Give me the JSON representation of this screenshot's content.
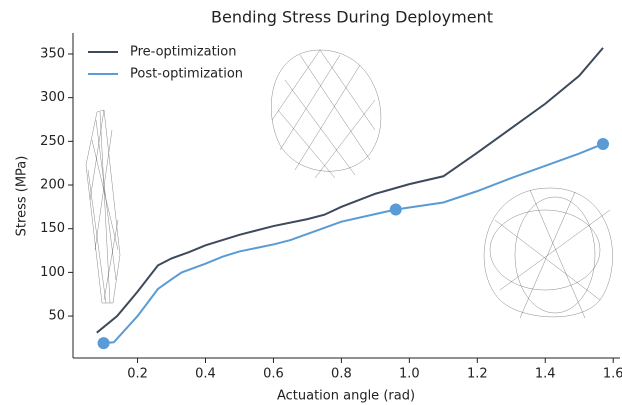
{
  "chart_data": {
    "type": "line",
    "title": "Bending Stress During Deployment",
    "x_label": "Actuation angle (rad)",
    "y_label": "Stress (MPa)",
    "xlim": [
      0.01,
      1.62
    ],
    "ylim": [
      2,
      374
    ],
    "xticks": [
      0.2,
      0.4,
      0.6,
      0.8,
      {
        "value": 1,
        "label": "1.0"
      },
      1.2,
      1.4,
      1.6
    ],
    "yticks": [
      50,
      100,
      150,
      200,
      250,
      300,
      350
    ],
    "grid": false,
    "legend": "upper left",
    "series": [
      {
        "name": "Pre-optimization",
        "color": "#3d4a5c",
        "x": [
          0.08,
          0.14,
          0.2,
          0.26,
          0.3,
          0.35,
          0.4,
          0.5,
          0.6,
          0.7,
          0.75,
          0.8,
          0.9,
          1.0,
          1.1,
          1.2,
          1.3,
          1.4,
          1.5,
          1.57
        ],
        "values": [
          31,
          50,
          78,
          108,
          116,
          123,
          131,
          143,
          153,
          161,
          166,
          175,
          190,
          201,
          210,
          237,
          265,
          293,
          325,
          357
        ]
      },
      {
        "name": "Post-optimization",
        "color": "#5b9bd5",
        "x": [
          0.1,
          0.13,
          0.2,
          0.26,
          0.3,
          0.33,
          0.4,
          0.45,
          0.5,
          0.6,
          0.65,
          0.8,
          0.96,
          1.1,
          1.2,
          1.3,
          1.4,
          1.5,
          1.57
        ],
        "values": [
          19,
          20,
          50,
          81,
          92,
          100,
          110,
          118,
          124,
          132,
          137,
          158,
          172,
          180,
          193,
          208,
          222,
          236,
          247
        ]
      }
    ],
    "highlight": {
      "color": "#5b9bd5",
      "x": [
        0.1,
        0.96,
        1.57
      ],
      "values": [
        19,
        172,
        247
      ]
    }
  }
}
